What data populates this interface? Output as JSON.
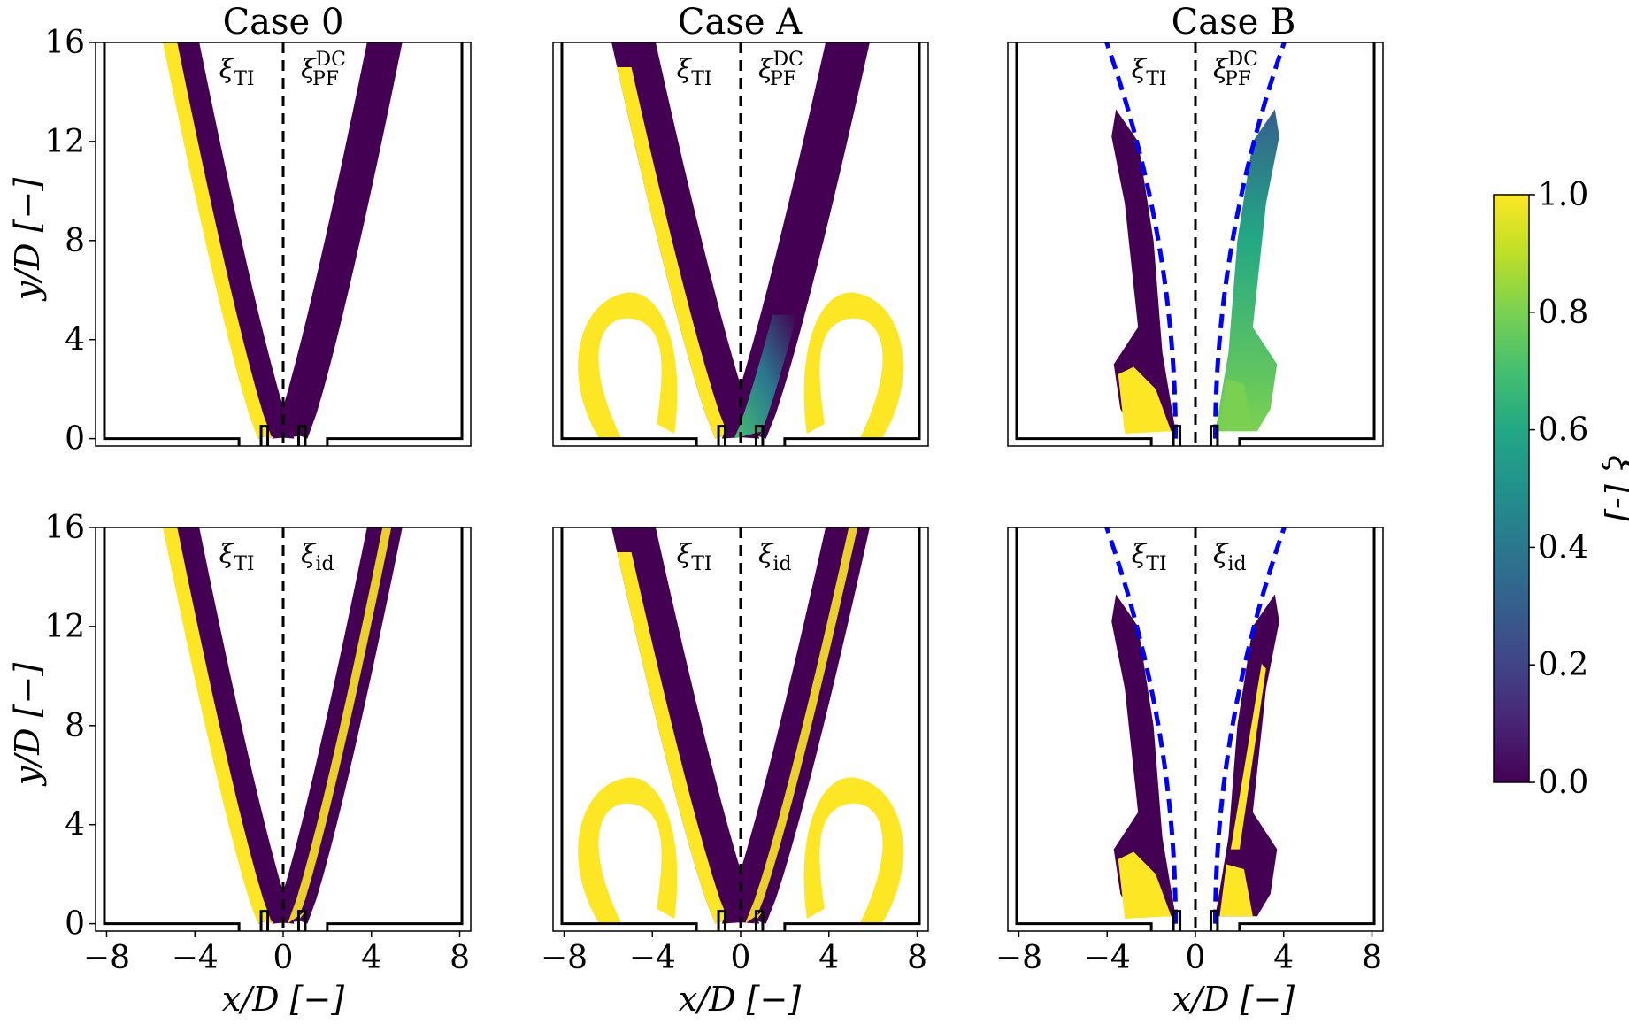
{
  "figure": {
    "titles": [
      "Case 0",
      "Case A",
      "Case B"
    ],
    "xlabel": "x/D [−]",
    "ylabel": "y/D [−]",
    "x_ticks": [
      "−8",
      "−4",
      "0",
      "4",
      "8"
    ],
    "y_ticks": [
      "0",
      "4",
      "8",
      "12",
      "16"
    ],
    "left_label": "ξTI",
    "left_label_main": "ξ",
    "left_label_sub": "TI",
    "top_right_label_main": "ξ",
    "top_right_label_sub": "PF",
    "top_right_label_sup": "DC",
    "bottom_right_label_main": "ξ",
    "bottom_right_label_sub": "id",
    "colorbar_label": "ξ [-]",
    "colorbar_ticks": [
      "0.0",
      "0.2",
      "0.4",
      "0.6",
      "0.8",
      "1.0"
    ]
  },
  "colors": {
    "low": "#440154",
    "high": "#fde725",
    "mid": "#21918c",
    "reference_curve": "#0000ff"
  },
  "chart_data": {
    "type": "heatmap",
    "layout": "2x3 panels",
    "columns": [
      "Case 0",
      "Case A",
      "Case B"
    ],
    "rows": [
      "ξTI | ξPF^DC",
      "ξTI | ξid"
    ],
    "xlabel": "x/D [−]",
    "ylabel": "y/D [−]",
    "xlim": [
      -8.5,
      8.5
    ],
    "ylim": [
      -0.3,
      16
    ],
    "xticks": [
      -8,
      -4,
      0,
      4,
      8
    ],
    "yticks": [
      0,
      4,
      8,
      12,
      16
    ],
    "colorbar": {
      "label": "ξ [-]",
      "range": [
        0.0,
        1.0
      ],
      "ticks": [
        0.0,
        0.2,
        0.4,
        0.6,
        0.8,
        1.0
      ],
      "colormap": "viridis"
    },
    "reference_curve_in": [
      "Case B"
    ],
    "symmetry_line_x": 0
  }
}
